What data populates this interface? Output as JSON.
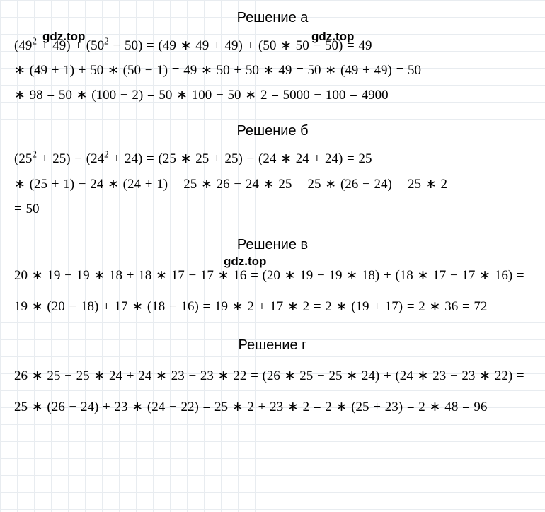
{
  "watermarks": {
    "w1": "gdz.top",
    "w2": "gdz.top",
    "w3": "gdz.top"
  },
  "sections": {
    "a": {
      "title": "Решение а",
      "lines": [
        "(49<sup>2</sup> + 49) + (50<sup>2</sup> − 50) = (49 ∗ 49 + 49) + (50 ∗ 50 − 50) = 49",
        "∗ (49 + 1) + 50 ∗ (50 − 1) = 49 ∗ 50 + 50 ∗ 49 = 50 ∗ (49 + 49) = 50",
        "∗ 98 = 50 ∗ (100 − 2) = 50 ∗ 100 − 50 ∗ 2 = 5000 − 100 = 4900"
      ]
    },
    "b": {
      "title": "Решение б",
      "lines": [
        "(25<sup>2</sup> + 25) − (24<sup>2</sup> + 24) = (25 ∗ 25 + 25) − (24 ∗ 24 + 24) = 25",
        "∗ (25 + 1) − 24 ∗ (24 + 1) = 25 ∗ 26 − 24 ∗ 25 = 25 ∗ (26 − 24) = 25 ∗ 2",
        "= 50"
      ]
    },
    "v": {
      "title": "Решение в",
      "lines": [
        "20 ∗ 19 − 19 ∗ 18 + 18 ∗ 17 − 17 ∗ 16 = (20 ∗ 19 − 19 ∗ 18) + (18 ∗ 17 − 17 ∗ 16) =",
        "19 ∗ (20 − 18) + 17 ∗ (18 − 16) = 19 ∗ 2 + 17 ∗ 2 = 2 ∗ (19 + 17) = 2 ∗ 36 = 72"
      ]
    },
    "g": {
      "title": "Решение г",
      "lines": [
        "26 ∗ 25 − 25 ∗ 24 + 24 ∗ 23 − 23 ∗ 22 = (26 ∗ 25 − 25 ∗ 24) + (24 ∗ 23 − 23 ∗ 22) =",
        "25 ∗ (26 − 24) + 23 ∗ (24 − 22) = 25 ∗ 2 + 23 ∗ 2 = 2 ∗ (25 + 23) = 2 ∗ 48 = 96"
      ]
    }
  },
  "style": {
    "background_color": "#ffffff",
    "grid_color": "#e8ecf0",
    "grid_size": 24,
    "heading_font": "Arial",
    "heading_fontsize": 20,
    "heading_color": "#000000",
    "math_font": "Times New Roman",
    "math_fontsize": 19,
    "math_color": "#000000",
    "watermark_fontsize": 17,
    "watermark_weight": 700
  }
}
